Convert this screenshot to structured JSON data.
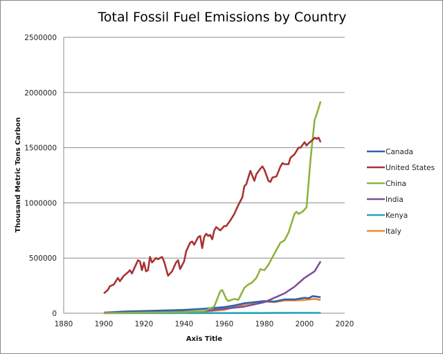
{
  "chart_data": {
    "type": "line",
    "title": "Total Fossil Fuel Emissions by Country",
    "xlabel": "Axis Title",
    "ylabel": "Thousand Metric Tons Carbon",
    "xlim": [
      1880,
      2020
    ],
    "ylim": [
      0,
      2500000
    ],
    "xticks": [
      "1880",
      "1900",
      "1920",
      "1940",
      "1960",
      "1980",
      "2000",
      "2020"
    ],
    "yticks": [
      "0",
      "500000",
      "1000000",
      "1500000",
      "2000000",
      "2500000"
    ],
    "grid": "horizontal",
    "legend": "right",
    "series": [
      {
        "name": "Canada",
        "color": "#2e63a8",
        "points": [
          [
            1900,
            5000
          ],
          [
            1910,
            15000
          ],
          [
            1920,
            20000
          ],
          [
            1930,
            25000
          ],
          [
            1940,
            30000
          ],
          [
            1950,
            40000
          ],
          [
            1960,
            55000
          ],
          [
            1965,
            70000
          ],
          [
            1970,
            90000
          ],
          [
            1975,
            100000
          ],
          [
            1980,
            110000
          ],
          [
            1985,
            105000
          ],
          [
            1990,
            125000
          ],
          [
            1995,
            125000
          ],
          [
            2000,
            140000
          ],
          [
            2002,
            135000
          ],
          [
            2004,
            155000
          ],
          [
            2006,
            150000
          ],
          [
            2008,
            145000
          ]
        ]
      },
      {
        "name": "United States",
        "color": "#a83232",
        "points": [
          [
            1900,
            180000
          ],
          [
            1902,
            210000
          ],
          [
            1903,
            245000
          ],
          [
            1905,
            260000
          ],
          [
            1907,
            320000
          ],
          [
            1908,
            290000
          ],
          [
            1910,
            340000
          ],
          [
            1912,
            370000
          ],
          [
            1913,
            390000
          ],
          [
            1914,
            360000
          ],
          [
            1916,
            440000
          ],
          [
            1917,
            480000
          ],
          [
            1918,
            470000
          ],
          [
            1919,
            390000
          ],
          [
            1920,
            460000
          ],
          [
            1921,
            380000
          ],
          [
            1922,
            390000
          ],
          [
            1923,
            510000
          ],
          [
            1924,
            460000
          ],
          [
            1926,
            500000
          ],
          [
            1927,
            490000
          ],
          [
            1929,
            510000
          ],
          [
            1930,
            470000
          ],
          [
            1932,
            340000
          ],
          [
            1934,
            380000
          ],
          [
            1936,
            460000
          ],
          [
            1937,
            480000
          ],
          [
            1938,
            400000
          ],
          [
            1940,
            470000
          ],
          [
            1941,
            560000
          ],
          [
            1943,
            640000
          ],
          [
            1944,
            650000
          ],
          [
            1945,
            620000
          ],
          [
            1947,
            690000
          ],
          [
            1948,
            700000
          ],
          [
            1949,
            590000
          ],
          [
            1950,
            690000
          ],
          [
            1951,
            720000
          ],
          [
            1952,
            700000
          ],
          [
            1953,
            710000
          ],
          [
            1954,
            670000
          ],
          [
            1955,
            750000
          ],
          [
            1956,
            780000
          ],
          [
            1958,
            750000
          ],
          [
            1960,
            790000
          ],
          [
            1961,
            790000
          ],
          [
            1963,
            840000
          ],
          [
            1965,
            900000
          ],
          [
            1967,
            980000
          ],
          [
            1969,
            1050000
          ],
          [
            1970,
            1150000
          ],
          [
            1971,
            1170000
          ],
          [
            1973,
            1290000
          ],
          [
            1975,
            1200000
          ],
          [
            1976,
            1260000
          ],
          [
            1978,
            1310000
          ],
          [
            1979,
            1330000
          ],
          [
            1980,
            1300000
          ],
          [
            1982,
            1200000
          ],
          [
            1983,
            1190000
          ],
          [
            1984,
            1230000
          ],
          [
            1986,
            1240000
          ],
          [
            1988,
            1330000
          ],
          [
            1989,
            1360000
          ],
          [
            1990,
            1350000
          ],
          [
            1992,
            1350000
          ],
          [
            1993,
            1410000
          ],
          [
            1995,
            1440000
          ],
          [
            1997,
            1500000
          ],
          [
            1998,
            1500000
          ],
          [
            2000,
            1550000
          ],
          [
            2001,
            1520000
          ],
          [
            2002,
            1540000
          ],
          [
            2004,
            1570000
          ],
          [
            2005,
            1590000
          ],
          [
            2006,
            1580000
          ],
          [
            2007,
            1590000
          ],
          [
            2008,
            1550000
          ]
        ]
      },
      {
        "name": "China",
        "color": "#8db33f",
        "points": [
          [
            1900,
            0
          ],
          [
            1920,
            5000
          ],
          [
            1940,
            10000
          ],
          [
            1950,
            20000
          ],
          [
            1955,
            60000
          ],
          [
            1958,
            200000
          ],
          [
            1959,
            210000
          ],
          [
            1961,
            130000
          ],
          [
            1962,
            110000
          ],
          [
            1965,
            130000
          ],
          [
            1967,
            120000
          ],
          [
            1970,
            230000
          ],
          [
            1972,
            260000
          ],
          [
            1974,
            280000
          ],
          [
            1976,
            320000
          ],
          [
            1978,
            400000
          ],
          [
            1980,
            390000
          ],
          [
            1982,
            440000
          ],
          [
            1985,
            540000
          ],
          [
            1988,
            640000
          ],
          [
            1990,
            660000
          ],
          [
            1992,
            730000
          ],
          [
            1995,
            900000
          ],
          [
            1996,
            920000
          ],
          [
            1997,
            900000
          ],
          [
            1999,
            920000
          ],
          [
            2001,
            960000
          ],
          [
            2003,
            1400000
          ],
          [
            2005,
            1750000
          ],
          [
            2006,
            1800000
          ],
          [
            2008,
            1920000
          ]
        ]
      },
      {
        "name": "India",
        "color": "#7b4f9d",
        "points": [
          [
            1900,
            5000
          ],
          [
            1920,
            8000
          ],
          [
            1940,
            12000
          ],
          [
            1950,
            20000
          ],
          [
            1960,
            40000
          ],
          [
            1970,
            60000
          ],
          [
            1975,
            80000
          ],
          [
            1980,
            100000
          ],
          [
            1985,
            140000
          ],
          [
            1990,
            180000
          ],
          [
            1995,
            240000
          ],
          [
            2000,
            320000
          ],
          [
            2005,
            380000
          ],
          [
            2008,
            470000
          ]
        ]
      },
      {
        "name": "Kenya",
        "color": "#21a3bd",
        "points": [
          [
            1900,
            0
          ],
          [
            1950,
            1000
          ],
          [
            1980,
            2000
          ],
          [
            1995,
            4000
          ],
          [
            2008,
            3000
          ]
        ]
      },
      {
        "name": "Italy",
        "color": "#ea8a2f",
        "points": [
          [
            1900,
            3000
          ],
          [
            1920,
            8000
          ],
          [
            1940,
            15000
          ],
          [
            1950,
            15000
          ],
          [
            1960,
            30000
          ],
          [
            1965,
            55000
          ],
          [
            1970,
            80000
          ],
          [
            1975,
            95000
          ],
          [
            1980,
            105000
          ],
          [
            1985,
            100000
          ],
          [
            1990,
            115000
          ],
          [
            1995,
            115000
          ],
          [
            2000,
            120000
          ],
          [
            2005,
            130000
          ],
          [
            2008,
            120000
          ]
        ]
      }
    ]
  }
}
